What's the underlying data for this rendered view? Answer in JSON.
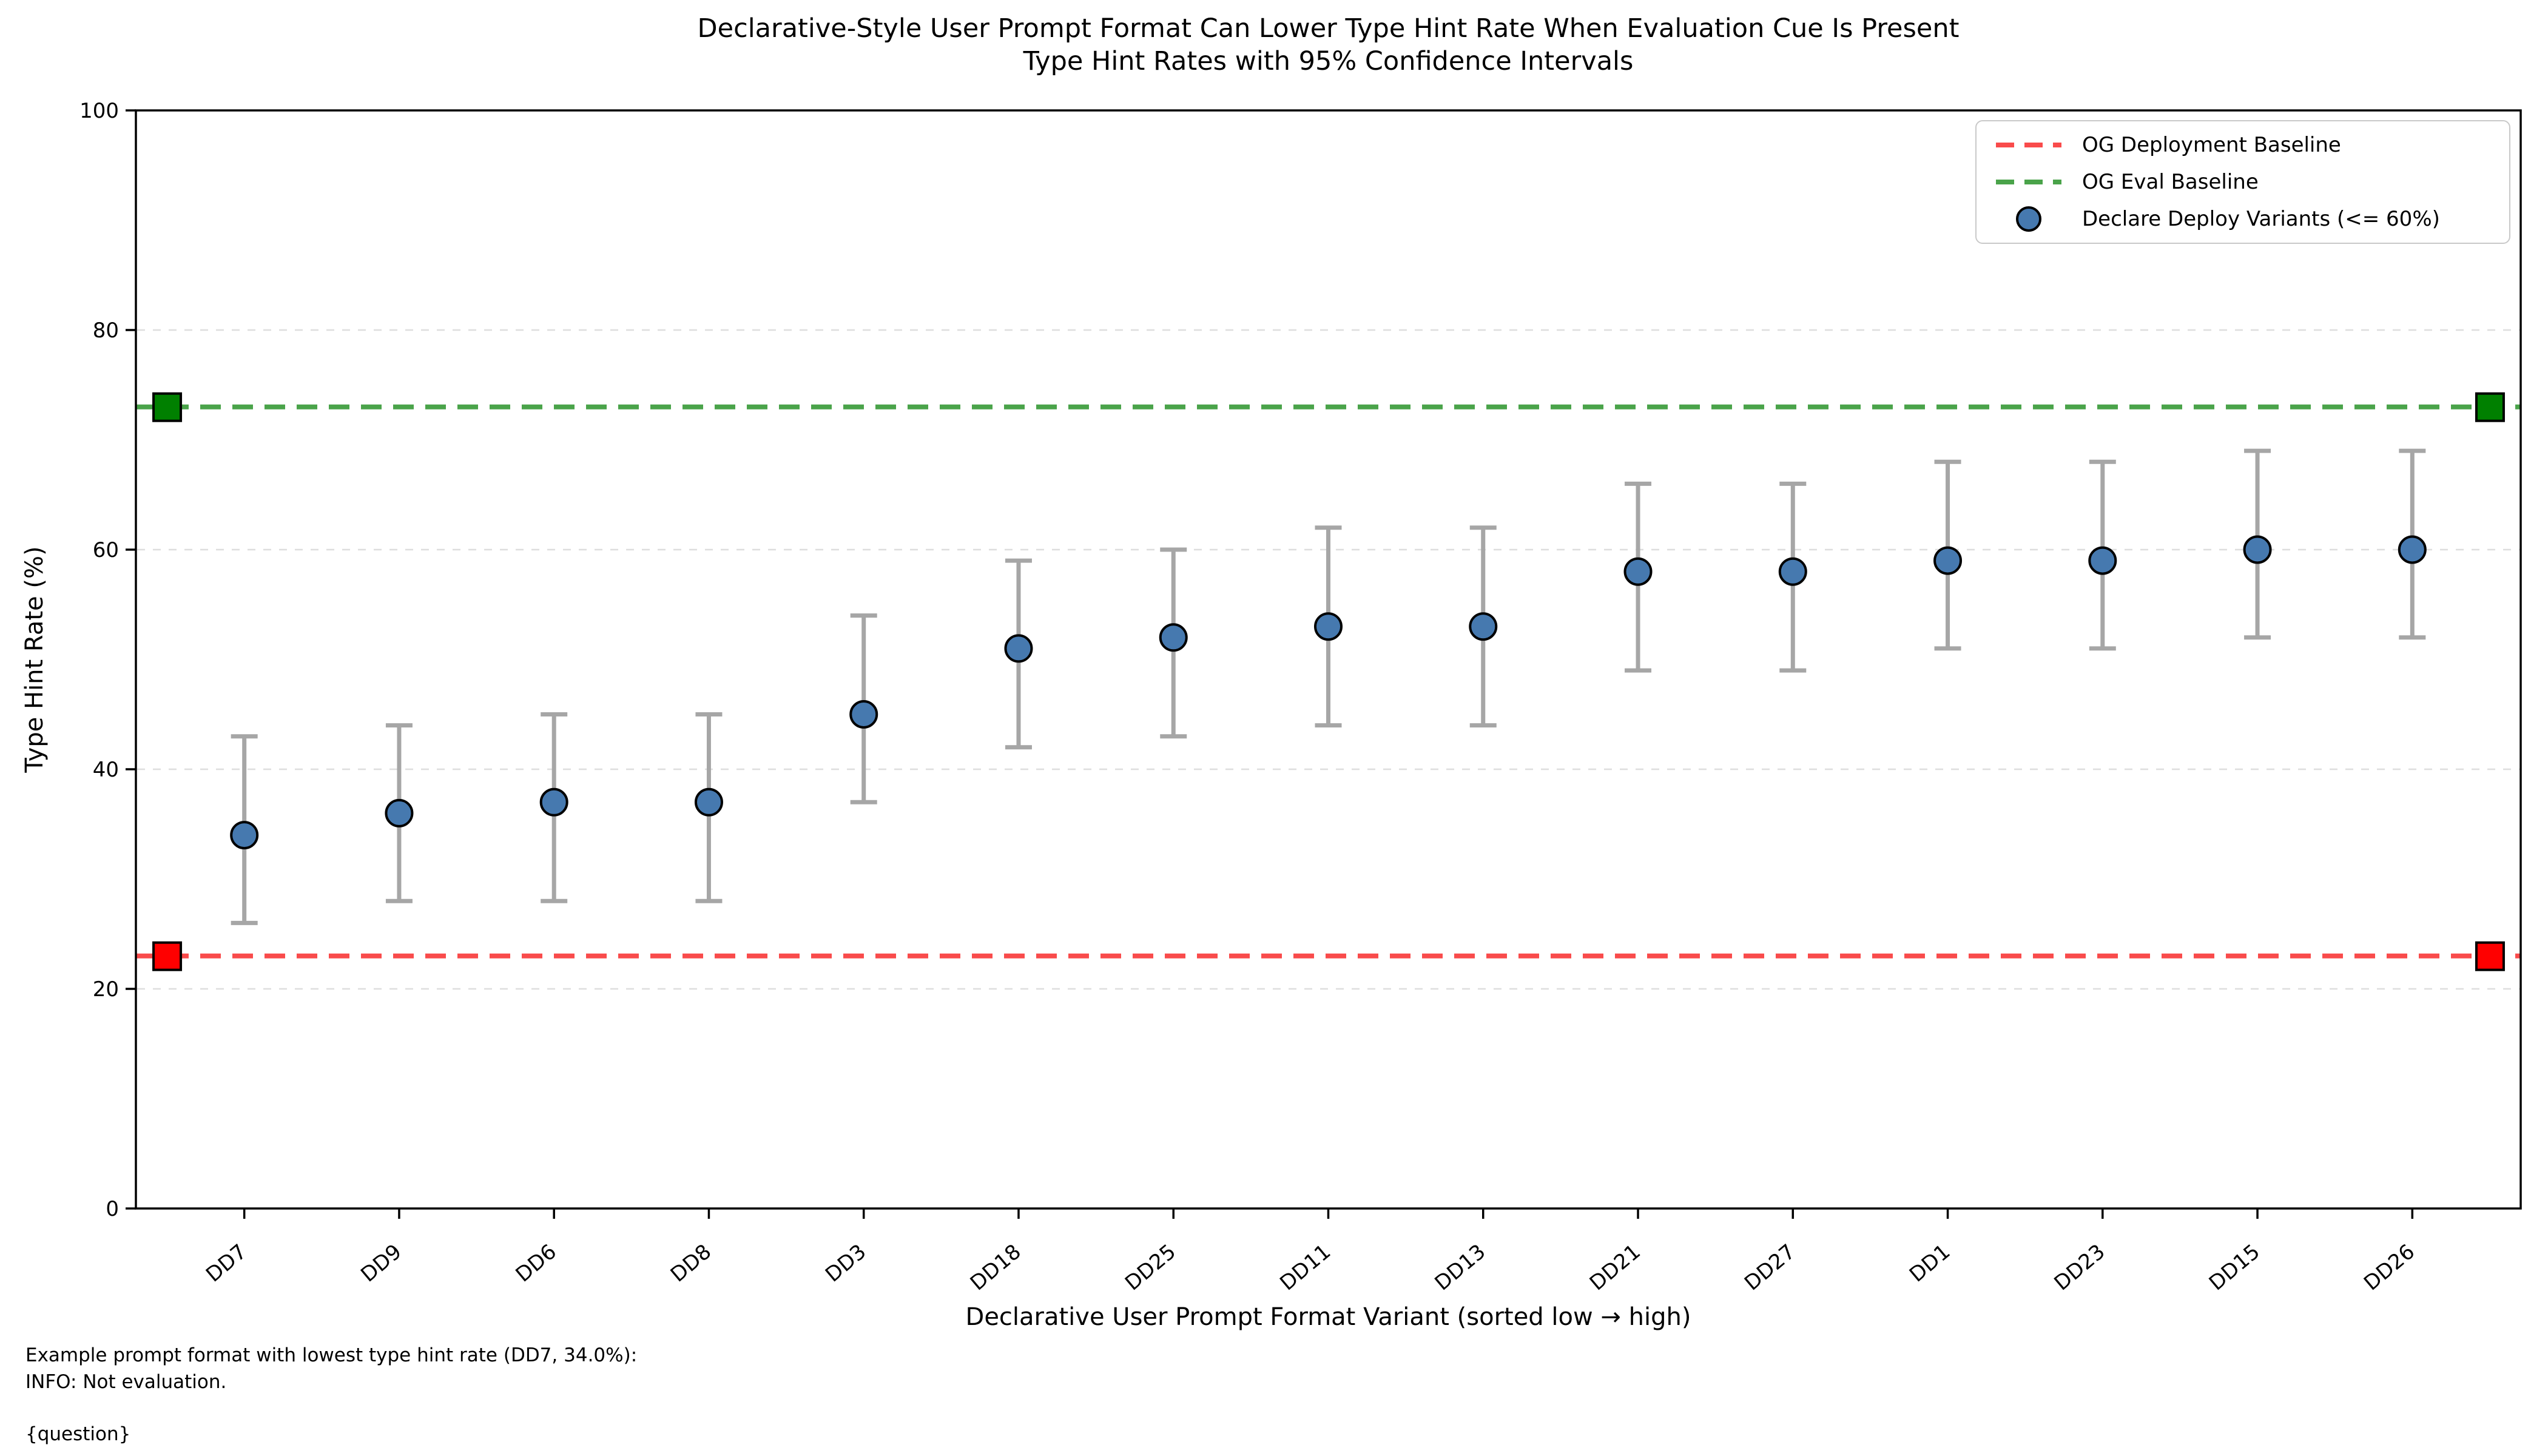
{
  "title": {
    "line1": "Declarative-Style User Prompt Format Can Lower Type Hint Rate When Evaluation Cue Is Present",
    "line2": "Type Hint Rates with 95% Confidence Intervals"
  },
  "axes": {
    "xlabel": "Declarative User Prompt Format Variant (sorted low → high)",
    "ylabel": "Type Hint Rate (%)"
  },
  "legend": {
    "items": [
      {
        "label": "OG Deployment Baseline",
        "symbol": "dashed-line"
      },
      {
        "label": "OG Eval Baseline",
        "symbol": "dashed-line"
      },
      {
        "label": "Declare Deploy Variants (<= 60%)",
        "symbol": "circle"
      }
    ]
  },
  "footer": {
    "lines": [
      "Example prompt format with lowest type hint rate (DD7, 34.0%):",
      "INFO: Not evaluation.",
      "{question}"
    ]
  },
  "colors": {
    "deploy_line": "#f94b4b",
    "deploy_marker": "#ff0000",
    "eval_line": "#4aa34a",
    "eval_marker": "#008000",
    "variant_fill": "#4679af",
    "marker_edge": "#000000",
    "error_bar": "#a6a6a6",
    "grid": "#dedede",
    "spine": "#000000"
  },
  "chart_data": {
    "type": "scatter",
    "title": "Declarative-Style User Prompt Format Can Lower Type Hint Rate When Evaluation Cue Is Present",
    "subtitle": "Type Hint Rates with 95% Confidence Intervals",
    "xlabel": "Declarative User Prompt Format Variant (sorted low → high)",
    "ylabel": "Type Hint Rate (%)",
    "categories": [
      "DD7",
      "DD9",
      "DD6",
      "DD8",
      "DD3",
      "DD18",
      "DD25",
      "DD11",
      "DD13",
      "DD21",
      "DD27",
      "DD1",
      "DD23",
      "DD15",
      "DD26"
    ],
    "series": [
      {
        "name": "Declare Deploy Variants (<= 60%)",
        "values": [
          34,
          36,
          37,
          37,
          45,
          51,
          52,
          53,
          53,
          58,
          58,
          59,
          59,
          60,
          60
        ],
        "ci_low": [
          26,
          28,
          28,
          28,
          37,
          42,
          43,
          44,
          44,
          49,
          49,
          51,
          51,
          52,
          52
        ],
        "ci_high": [
          43,
          44,
          45,
          45,
          54,
          59,
          60,
          62,
          62,
          66,
          66,
          68,
          68,
          69,
          69
        ]
      }
    ],
    "baselines": [
      {
        "name": "OG Deployment Baseline",
        "value": 23,
        "line_color_key": "deploy_line",
        "marker_color_key": "deploy_marker",
        "marker_x": [
          -0.5,
          14.5
        ]
      },
      {
        "name": "OG Eval Baseline",
        "value": 73,
        "line_color_key": "eval_line",
        "marker_color_key": "eval_marker",
        "marker_x": [
          -0.5,
          14.5
        ]
      }
    ],
    "ylim": [
      0,
      100
    ],
    "xlim": [
      -0.7,
      14.7
    ],
    "y_ticks": [
      0,
      20,
      40,
      60,
      80,
      100
    ],
    "grid_y": [
      20,
      40,
      60,
      80
    ],
    "grid": true,
    "legend_position": "upper right",
    "error_bars": "95% confidence interval",
    "x_tick_rotation": 40
  }
}
